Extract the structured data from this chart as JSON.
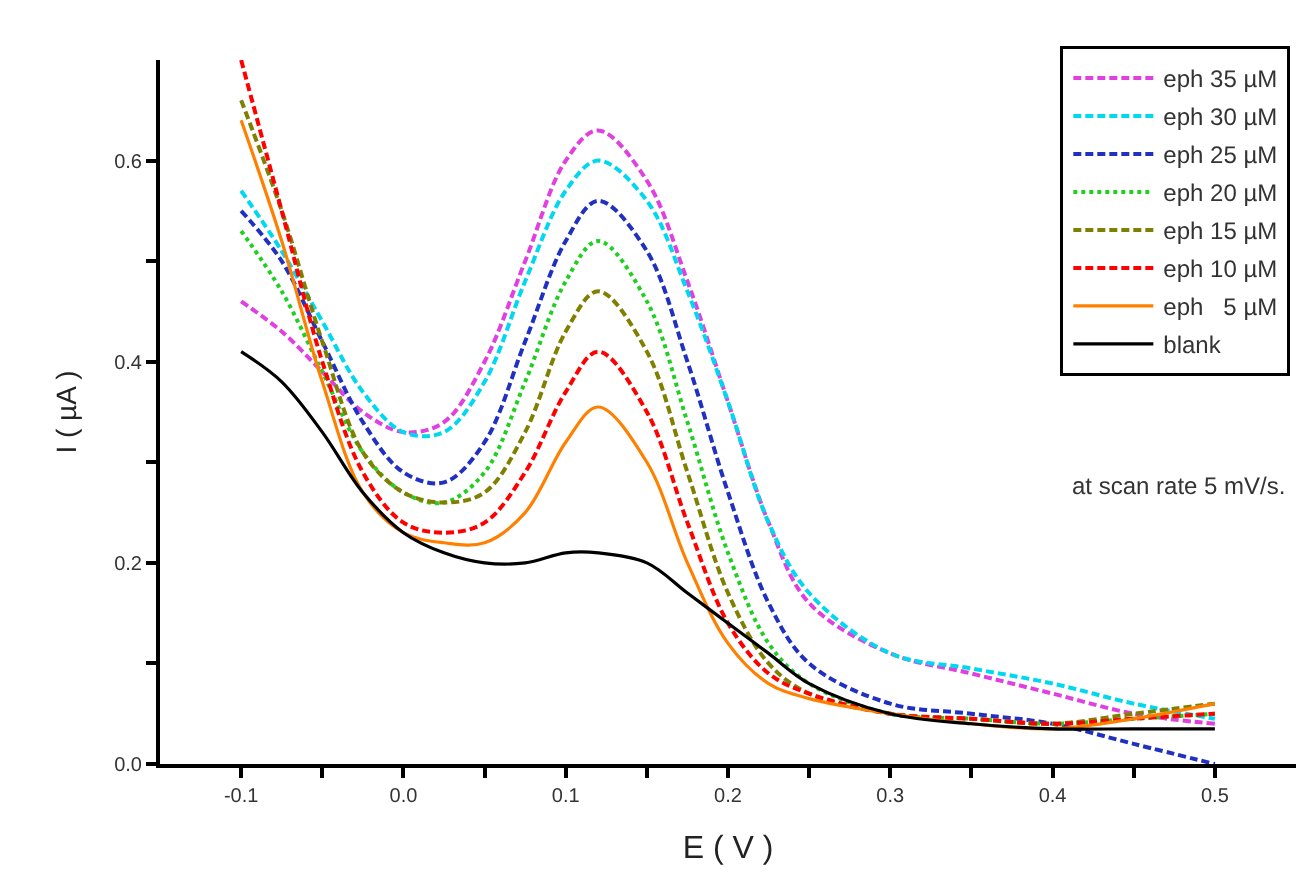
{
  "chart_data": {
    "type": "line",
    "xlabel": "E ( V )",
    "ylabel": "I ( µA )",
    "x": [
      -0.1,
      -0.075,
      -0.05,
      -0.025,
      0,
      0.025,
      0.05,
      0.075,
      0.1,
      0.12,
      0.15,
      0.175,
      0.2,
      0.225,
      0.25,
      0.3,
      0.35,
      0.4,
      0.45,
      0.5
    ],
    "series": [
      {
        "name": "eph 35 µM",
        "color": "#e040e0",
        "line_style": "dashed",
        "values": [
          0.46,
          0.43,
          0.39,
          0.35,
          0.33,
          0.34,
          0.4,
          0.5,
          0.6,
          0.63,
          0.58,
          0.48,
          0.36,
          0.24,
          0.16,
          0.11,
          0.09,
          0.07,
          0.05,
          0.04
        ]
      },
      {
        "name": "eph 30 µM",
        "color": "#00d8f0",
        "line_style": "dashed",
        "values": [
          0.57,
          0.51,
          0.44,
          0.37,
          0.33,
          0.33,
          0.38,
          0.48,
          0.57,
          0.6,
          0.56,
          0.47,
          0.36,
          0.24,
          0.17,
          0.11,
          0.095,
          0.08,
          0.06,
          0.045
        ]
      },
      {
        "name": "eph 25 µM",
        "color": "#2030c0",
        "line_style": "dashed",
        "values": [
          0.55,
          0.5,
          0.42,
          0.34,
          0.29,
          0.28,
          0.32,
          0.42,
          0.52,
          0.56,
          0.51,
          0.4,
          0.27,
          0.16,
          0.1,
          0.06,
          0.05,
          0.04,
          0.02,
          0.0
        ]
      },
      {
        "name": "eph 20 µM",
        "color": "#20d020",
        "line_style": "dotted",
        "values": [
          0.53,
          0.47,
          0.39,
          0.31,
          0.27,
          0.26,
          0.29,
          0.38,
          0.48,
          0.52,
          0.46,
          0.34,
          0.21,
          0.12,
          0.08,
          0.05,
          0.045,
          0.04,
          0.045,
          0.05
        ]
      },
      {
        "name": "eph 15 µM",
        "color": "#808000",
        "line_style": "dashed",
        "values": [
          0.66,
          0.55,
          0.42,
          0.31,
          0.27,
          0.26,
          0.27,
          0.33,
          0.43,
          0.47,
          0.41,
          0.29,
          0.17,
          0.1,
          0.07,
          0.05,
          0.045,
          0.04,
          0.05,
          0.06
        ]
      },
      {
        "name": "eph 10 µM",
        "color": "#ff0000",
        "line_style": "dashed",
        "values": [
          0.7,
          0.55,
          0.4,
          0.29,
          0.24,
          0.23,
          0.24,
          0.29,
          0.37,
          0.41,
          0.35,
          0.24,
          0.14,
          0.09,
          0.07,
          0.05,
          0.045,
          0.04,
          0.045,
          0.05
        ]
      },
      {
        "name": "eph   5 µM",
        "color": "#ff8000",
        "line_style": "solid",
        "values": [
          0.64,
          0.52,
          0.38,
          0.27,
          0.23,
          0.22,
          0.22,
          0.25,
          0.32,
          0.355,
          0.3,
          0.2,
          0.12,
          0.08,
          0.065,
          0.05,
          0.04,
          0.035,
          0.045,
          0.06
        ]
      },
      {
        "name": "blank",
        "color": "#000000",
        "line_style": "solid",
        "values": [
          0.41,
          0.38,
          0.33,
          0.27,
          0.23,
          0.21,
          0.2,
          0.2,
          0.21,
          0.21,
          0.2,
          0.17,
          0.14,
          0.11,
          0.08,
          0.05,
          0.04,
          0.035,
          0.035,
          0.035
        ]
      }
    ],
    "annotations": [
      "at scan rate 5 mV/s."
    ],
    "xlim": [
      -0.15,
      0.55
    ],
    "ylim": [
      0,
      0.7
    ],
    "xticks": [
      -0.1,
      {
        "value": -0.05,
        "label": null
      },
      "0.0",
      {
        "value": 0.05,
        "label": null
      },
      0.1,
      {
        "value": 0.15,
        "label": null
      },
      0.2,
      {
        "value": 0.25,
        "label": null
      },
      0.3,
      {
        "value": 0.35,
        "label": null
      },
      0.4,
      {
        "value": 0.45,
        "label": null
      },
      0.5
    ],
    "yticks": [
      {
        "value": 0,
        "label": "0.0"
      },
      {
        "value": 0.1,
        "label": null
      },
      0.2,
      {
        "value": 0.3,
        "label": null
      },
      0.4,
      {
        "value": 0.5,
        "label": null
      },
      0.6
    ],
    "legend": "top right",
    "marker": "none"
  }
}
